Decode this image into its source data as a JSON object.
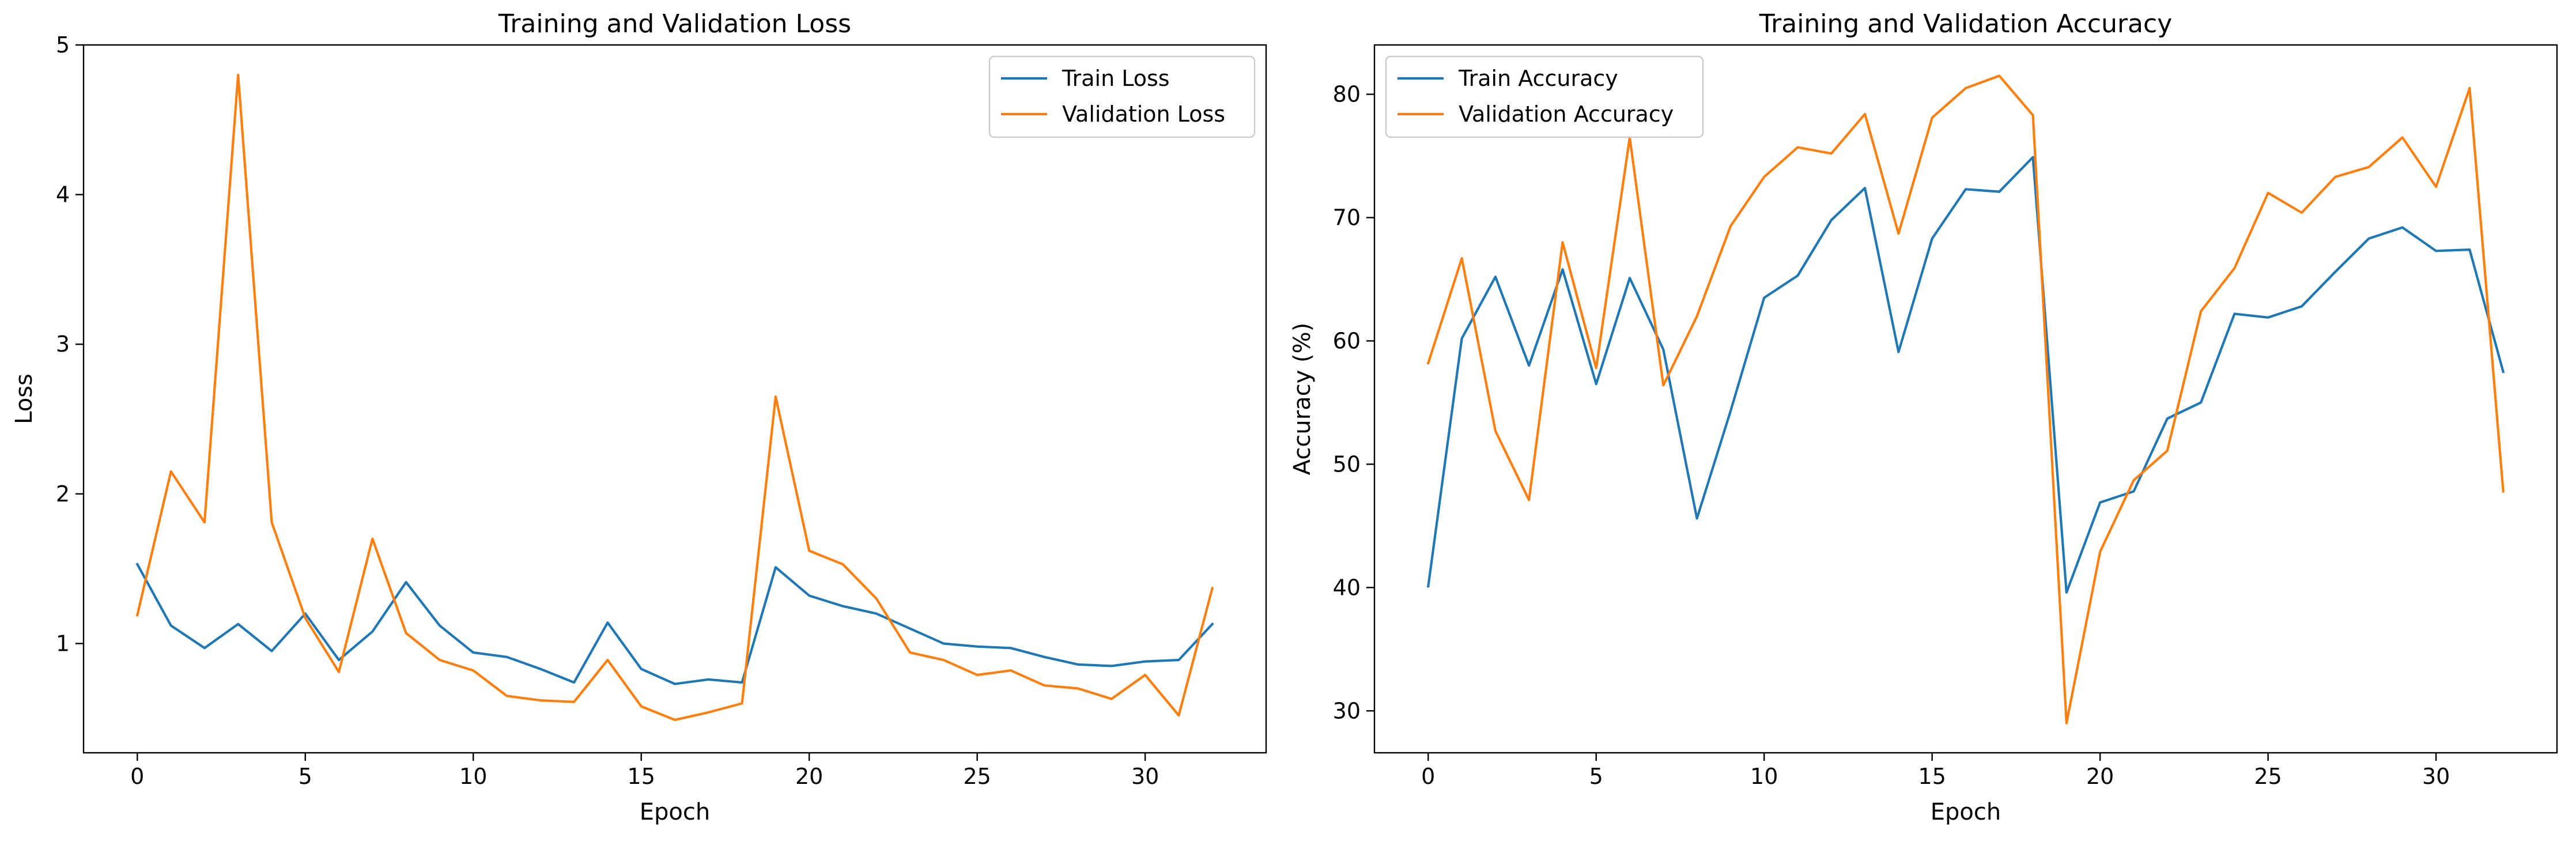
{
  "chart_data": [
    {
      "type": "line",
      "title": "Training and Validation Loss",
      "xlabel": "Epoch",
      "ylabel": "Loss",
      "xlim": [
        -1.6,
        33.6
      ],
      "ylim": [
        0.27,
        5.0
      ],
      "xticks": [
        0,
        5,
        10,
        15,
        20,
        25,
        30
      ],
      "yticks": [
        1,
        2,
        3,
        4,
        5
      ],
      "legend_position": "top-right",
      "x": [
        0,
        1,
        2,
        3,
        4,
        5,
        6,
        7,
        8,
        9,
        10,
        11,
        12,
        13,
        14,
        15,
        16,
        17,
        18,
        19,
        20,
        21,
        22,
        23,
        24,
        25,
        26,
        27,
        28,
        29,
        30,
        31,
        32
      ],
      "series": [
        {
          "name": "Train Loss",
          "color": "#1f77b4",
          "values": [
            1.53,
            1.12,
            0.97,
            1.13,
            0.95,
            1.2,
            0.89,
            1.08,
            1.41,
            1.12,
            0.94,
            0.91,
            0.83,
            0.74,
            1.14,
            0.83,
            0.73,
            0.76,
            0.74,
            1.51,
            1.32,
            1.25,
            1.2,
            1.1,
            1.0,
            0.98,
            0.97,
            0.91,
            0.86,
            0.85,
            0.88,
            0.89,
            1.13
          ]
        },
        {
          "name": "Validation Loss",
          "color": "#ff7f0e",
          "values": [
            1.19,
            2.15,
            1.81,
            4.8,
            1.81,
            1.17,
            0.81,
            1.7,
            1.07,
            0.89,
            0.82,
            0.65,
            0.62,
            0.61,
            0.89,
            0.58,
            0.49,
            0.54,
            0.6,
            2.65,
            1.62,
            1.53,
            1.3,
            0.94,
            0.89,
            0.79,
            0.82,
            0.72,
            0.7,
            0.63,
            0.79,
            0.52,
            1.37
          ]
        }
      ]
    },
    {
      "type": "line",
      "title": "Training and Validation Accuracy",
      "xlabel": "Epoch",
      "ylabel": "Accuracy (%)",
      "xlim": [
        -1.6,
        33.6
      ],
      "ylim": [
        26.6,
        84.0
      ],
      "xticks": [
        0,
        5,
        10,
        15,
        20,
        25,
        30
      ],
      "yticks": [
        30,
        40,
        50,
        60,
        70,
        80
      ],
      "legend_position": "top-left",
      "x": [
        0,
        1,
        2,
        3,
        4,
        5,
        6,
        7,
        8,
        9,
        10,
        11,
        12,
        13,
        14,
        15,
        16,
        17,
        18,
        19,
        20,
        21,
        22,
        23,
        24,
        25,
        26,
        27,
        28,
        29,
        30,
        31,
        32
      ],
      "series": [
        {
          "name": "Train Accuracy",
          "color": "#1f77b4",
          "values": [
            40.1,
            60.2,
            65.2,
            58.0,
            65.8,
            56.5,
            65.1,
            59.3,
            45.6,
            54.3,
            63.5,
            65.3,
            69.8,
            72.4,
            59.1,
            68.3,
            72.3,
            72.1,
            74.9,
            39.6,
            46.9,
            47.8,
            53.7,
            55.0,
            62.2,
            61.9,
            62.8,
            65.6,
            68.3,
            69.2,
            67.3,
            67.4,
            57.5
          ]
        },
        {
          "name": "Validation Accuracy",
          "color": "#ff7f0e",
          "values": [
            58.2,
            66.7,
            52.7,
            47.1,
            68.0,
            57.8,
            76.5,
            56.4,
            62.0,
            69.3,
            73.3,
            75.7,
            75.2,
            78.4,
            68.7,
            78.1,
            80.5,
            81.5,
            78.3,
            29.0,
            42.9,
            48.7,
            51.1,
            62.4,
            65.9,
            72.0,
            70.4,
            73.3,
            74.1,
            76.5,
            72.5,
            80.5,
            47.8
          ]
        }
      ]
    }
  ]
}
